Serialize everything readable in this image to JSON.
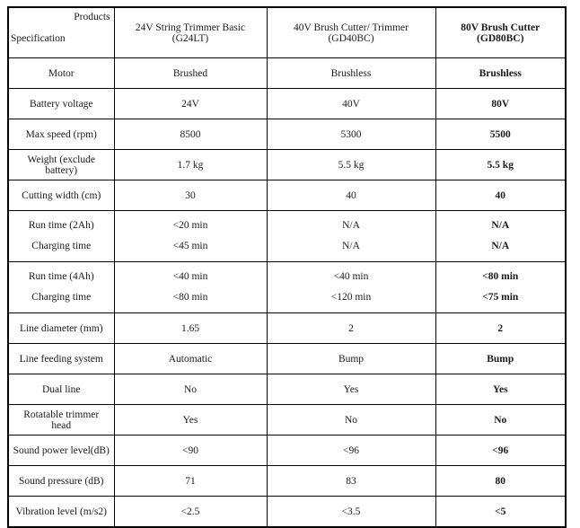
{
  "colors": {
    "border": "#000000",
    "background": "#ffffff",
    "text": "#1a1a1a"
  },
  "header": {
    "corner_top": "Products",
    "corner_bottom": "Specification",
    "products": [
      "24V String Trimmer Basic (G24LT)",
      "40V Brush Cutter/ Trimmer (GD40BC)",
      "80V Brush Cutter (GD80BC)"
    ]
  },
  "rows": [
    {
      "label": "Motor",
      "values": [
        "Brushed",
        "Brushless",
        "Brushless"
      ]
    },
    {
      "label": "Battery voltage",
      "values": [
        "24V",
        "40V",
        "80V"
      ]
    },
    {
      "label": "Max speed (rpm)",
      "values": [
        "8500",
        "5300",
        "5500"
      ]
    },
    {
      "label": "Weight (exclude battery)",
      "values": [
        "1.7 kg",
        "5.5 kg",
        "5.5 kg"
      ]
    },
    {
      "label": "Cutting width (cm)",
      "values": [
        "30",
        "40",
        "40"
      ]
    },
    {
      "labels": [
        "Run time (2Ah)",
        "Charging time"
      ],
      "values": [
        [
          "<20 min",
          "<45 min"
        ],
        [
          "N/A",
          "N/A"
        ],
        [
          "N/A",
          "N/A"
        ]
      ]
    },
    {
      "labels": [
        "Run time (4Ah)",
        "Charging time"
      ],
      "values": [
        [
          "<40 min",
          "<80 min"
        ],
        [
          "<40 min",
          "<120 min"
        ],
        [
          "<80 min",
          "<75 min"
        ]
      ]
    },
    {
      "label": "Line diameter (mm)",
      "values": [
        "1.65",
        "2",
        "2"
      ]
    },
    {
      "label": "Line feeding system",
      "values": [
        "Automatic",
        "Bump",
        "Bump"
      ]
    },
    {
      "label": "Dual line",
      "values": [
        "No",
        "Yes",
        "Yes"
      ]
    },
    {
      "label": "Rotatable trimmer head",
      "values": [
        "Yes",
        "No",
        "No"
      ]
    },
    {
      "label": "Sound power level(dB)",
      "values": [
        "<90",
        "<96",
        "<96"
      ]
    },
    {
      "label": "Sound pressure (dB)",
      "values": [
        "71",
        "83",
        "80"
      ]
    },
    {
      "label": "Vibration level (m/s2)",
      "values": [
        "<2.5",
        "<3.5",
        "<5"
      ]
    }
  ]
}
